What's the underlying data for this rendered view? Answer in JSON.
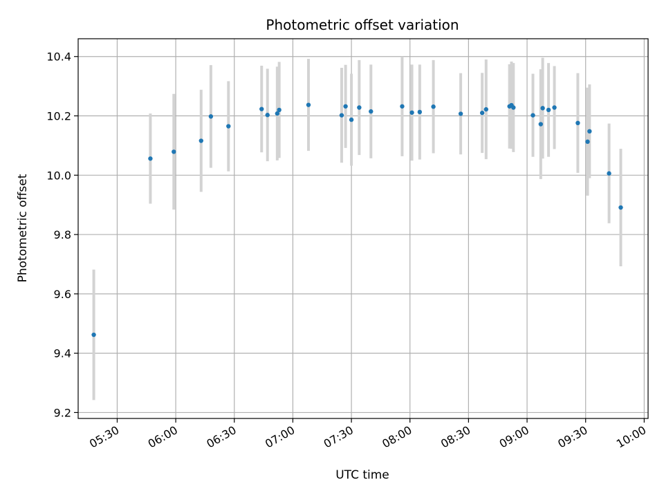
{
  "chart_data": {
    "type": "scatter",
    "title": "Photometric offset variation",
    "xlabel": "UTC time",
    "ylabel": "Photometric offset",
    "x_unit": "HH:MM UTC",
    "x_ticks": [
      "05:30",
      "06:00",
      "06:30",
      "07:00",
      "07:30",
      "08:00",
      "08:30",
      "09:00",
      "09:30",
      "10:00"
    ],
    "y_ticks": [
      9.2,
      9.4,
      9.6,
      9.8,
      10.0,
      10.2,
      10.4
    ],
    "xlim": [
      "05:10",
      "10:02"
    ],
    "ylim": [
      9.18,
      10.46
    ],
    "grid": true,
    "colors": {
      "point": "#1f77b4",
      "errorbar": "#d3d3d3",
      "grid": "#b0b0b0"
    },
    "points": [
      {
        "x": "05:18",
        "y": 9.462,
        "err": 0.22
      },
      {
        "x": "05:47",
        "y": 10.056,
        "err": 0.152
      },
      {
        "x": "05:59",
        "y": 10.079,
        "err": 0.195
      },
      {
        "x": "06:13",
        "y": 10.116,
        "err": 0.172
      },
      {
        "x": "06:18",
        "y": 10.198,
        "err": 0.173
      },
      {
        "x": "06:27",
        "y": 10.165,
        "err": 0.152
      },
      {
        "x": "06:44",
        "y": 10.223,
        "err": 0.146
      },
      {
        "x": "06:47",
        "y": 10.203,
        "err": 0.156
      },
      {
        "x": "06:52",
        "y": 10.208,
        "err": 0.158
      },
      {
        "x": "06:53",
        "y": 10.22,
        "err": 0.162
      },
      {
        "x": "07:08",
        "y": 10.237,
        "err": 0.155
      },
      {
        "x": "07:25",
        "y": 10.202,
        "err": 0.16
      },
      {
        "x": "07:27",
        "y": 10.232,
        "err": 0.14
      },
      {
        "x": "07:30",
        "y": 10.187,
        "err": 0.155
      },
      {
        "x": "07:34",
        "y": 10.228,
        "err": 0.16
      },
      {
        "x": "07:40",
        "y": 10.215,
        "err": 0.158
      },
      {
        "x": "07:56",
        "y": 10.232,
        "err": 0.168
      },
      {
        "x": "08:01",
        "y": 10.211,
        "err": 0.162
      },
      {
        "x": "08:05",
        "y": 10.213,
        "err": 0.16
      },
      {
        "x": "08:12",
        "y": 10.231,
        "err": 0.157
      },
      {
        "x": "08:26",
        "y": 10.207,
        "err": 0.137
      },
      {
        "x": "08:37",
        "y": 10.21,
        "err": 0.135
      },
      {
        "x": "08:39",
        "y": 10.222,
        "err": 0.168
      },
      {
        "x": "08:51",
        "y": 10.232,
        "err": 0.142
      },
      {
        "x": "08:52",
        "y": 10.236,
        "err": 0.147
      },
      {
        "x": "08:53",
        "y": 10.228,
        "err": 0.15
      },
      {
        "x": "09:03",
        "y": 10.202,
        "err": 0.14
      },
      {
        "x": "09:07",
        "y": 10.172,
        "err": 0.185
      },
      {
        "x": "09:08",
        "y": 10.226,
        "err": 0.17
      },
      {
        "x": "09:11",
        "y": 10.22,
        "err": 0.158
      },
      {
        "x": "09:14",
        "y": 10.228,
        "err": 0.14
      },
      {
        "x": "09:26",
        "y": 10.176,
        "err": 0.168
      },
      {
        "x": "09:31",
        "y": 10.113,
        "err": 0.182
      },
      {
        "x": "09:32",
        "y": 10.148,
        "err": 0.158
      },
      {
        "x": "09:42",
        "y": 10.006,
        "err": 0.168
      },
      {
        "x": "09:48",
        "y": 9.891,
        "err": 0.198
      }
    ]
  }
}
